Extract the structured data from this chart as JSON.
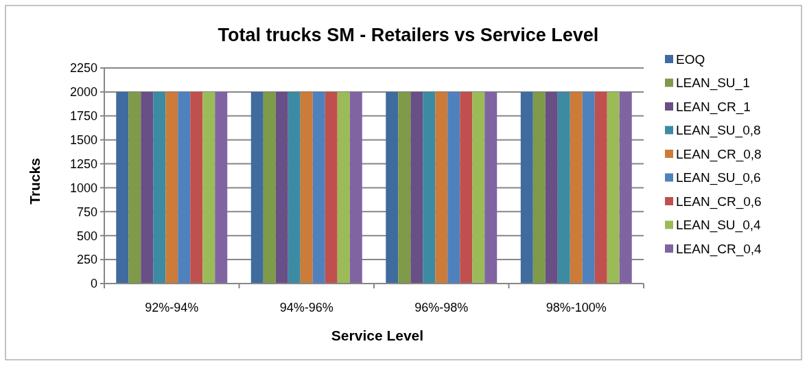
{
  "chart_data": {
    "type": "bar",
    "title": "Total trucks SM - Retailers vs Service Level",
    "xlabel": "Service Level",
    "ylabel": "Trucks",
    "categories": [
      "92%-94%",
      "94%-96%",
      "96%-98%",
      "98%-100%"
    ],
    "series": [
      {
        "name": "EOQ",
        "color": "#3f6b9e",
        "values": [
          2000,
          2000,
          2000,
          2000
        ]
      },
      {
        "name": "LEAN_SU_1",
        "color": "#7f9a48",
        "values": [
          2000,
          2000,
          2000,
          2000
        ]
      },
      {
        "name": "LEAN_CR_1",
        "color": "#684f86",
        "values": [
          2000,
          2000,
          2000,
          2000
        ]
      },
      {
        "name": "LEAN_SU_0,8",
        "color": "#3c8ba2",
        "values": [
          2000,
          2000,
          2000,
          2000
        ]
      },
      {
        "name": "LEAN_CR_0,8",
        "color": "#cc7b39",
        "values": [
          2000,
          2000,
          2000,
          2000
        ]
      },
      {
        "name": "LEAN_SU_0,6",
        "color": "#4f81bd",
        "values": [
          2000,
          2000,
          2000,
          2000
        ]
      },
      {
        "name": "LEAN_CR_0,6",
        "color": "#c0504d",
        "values": [
          2000,
          2000,
          2000,
          2000
        ]
      },
      {
        "name": "LEAN_SU_0,4",
        "color": "#9bbb59",
        "values": [
          2000,
          2000,
          2000,
          2000
        ]
      },
      {
        "name": "LEAN_CR_0,4",
        "color": "#8064a2",
        "values": [
          2000,
          2000,
          2000,
          2000
        ]
      }
    ],
    "ylim": [
      0,
      2250
    ],
    "yticks": [
      0,
      250,
      500,
      750,
      1000,
      1250,
      1500,
      1750,
      2000,
      2250
    ],
    "grid": "y",
    "legend": "right"
  }
}
